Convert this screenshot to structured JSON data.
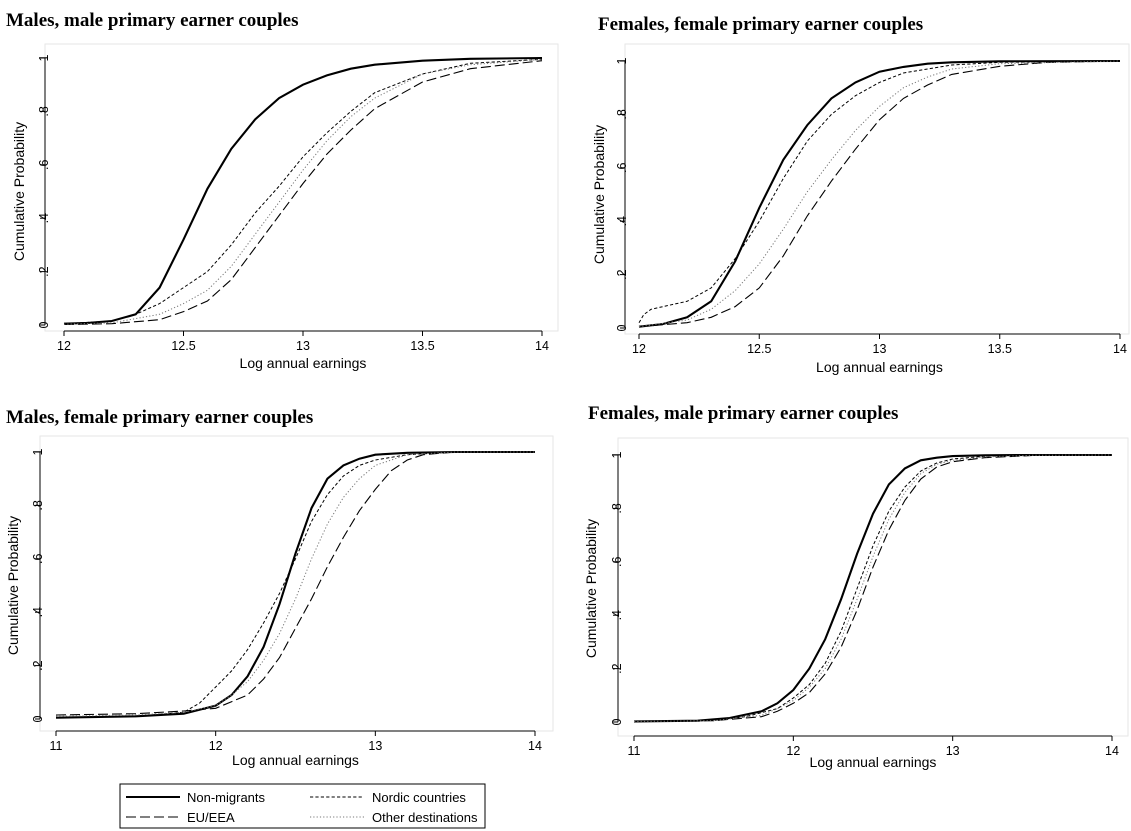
{
  "legend": {
    "placement": "bottom-center",
    "entries": [
      "Non-migrants",
      "Nordic countries",
      "EU/EEA",
      "Other destinations"
    ]
  },
  "chart_data": [
    {
      "type": "line",
      "title": "Males, male primary earner couples",
      "xlabel": "Log annual earnings",
      "ylabel": "Cumulative Probability",
      "xlim": [
        12,
        14
      ],
      "ylim": [
        0,
        1
      ],
      "xticks": [
        "12",
        "12.5",
        "13",
        "13.5",
        "14"
      ],
      "yticks": [
        "0",
        ".2",
        ".4",
        ".6",
        ".8",
        "1"
      ],
      "series": [
        {
          "name": "Non-migrants",
          "style": "solid",
          "x": [
            12,
            12.1,
            12.2,
            12.3,
            12.4,
            12.5,
            12.6,
            12.7,
            12.8,
            12.9,
            13,
            13.1,
            13.2,
            13.3,
            13.5,
            13.7,
            14
          ],
          "y": [
            0.005,
            0.008,
            0.015,
            0.04,
            0.14,
            0.32,
            0.51,
            0.66,
            0.77,
            0.85,
            0.9,
            0.935,
            0.96,
            0.975,
            0.99,
            0.997,
            1.0
          ]
        },
        {
          "name": "Nordic countries",
          "style": "short-dash",
          "x": [
            12,
            12.2,
            12.3,
            12.4,
            12.5,
            12.6,
            12.7,
            12.8,
            12.9,
            13,
            13.1,
            13.2,
            13.3,
            13.5,
            13.7,
            14
          ],
          "y": [
            0.005,
            0.015,
            0.04,
            0.08,
            0.14,
            0.2,
            0.3,
            0.42,
            0.52,
            0.63,
            0.72,
            0.8,
            0.87,
            0.94,
            0.98,
            0.995
          ]
        },
        {
          "name": "EU/EEA",
          "style": "long-dash",
          "x": [
            12,
            12.2,
            12.4,
            12.5,
            12.6,
            12.7,
            12.8,
            12.9,
            13,
            13.1,
            13.2,
            13.3,
            13.5,
            13.7,
            14
          ],
          "y": [
            0.002,
            0.005,
            0.02,
            0.05,
            0.09,
            0.17,
            0.29,
            0.41,
            0.53,
            0.64,
            0.73,
            0.81,
            0.91,
            0.96,
            0.99
          ]
        },
        {
          "name": "Other destinations",
          "style": "dotted",
          "x": [
            12,
            12.2,
            12.4,
            12.5,
            12.6,
            12.7,
            12.8,
            12.9,
            13,
            13.1,
            13.2,
            13.3,
            13.5,
            13.7,
            14
          ],
          "y": [
            0.003,
            0.008,
            0.04,
            0.08,
            0.13,
            0.22,
            0.34,
            0.46,
            0.58,
            0.69,
            0.78,
            0.85,
            0.94,
            0.975,
            0.995
          ]
        }
      ]
    },
    {
      "type": "line",
      "title": "Females, female primary earner couples",
      "xlabel": "Log annual earnings",
      "ylabel": "Cumulative Probability",
      "xlim": [
        12,
        14
      ],
      "ylim": [
        0,
        1
      ],
      "xticks": [
        "12",
        "12.5",
        "13",
        "13.5",
        "14"
      ],
      "yticks": [
        "0",
        ".2",
        ".4",
        ".6",
        ".8",
        "1"
      ],
      "series": [
        {
          "name": "Non-migrants",
          "style": "solid",
          "x": [
            12,
            12.1,
            12.2,
            12.3,
            12.4,
            12.5,
            12.6,
            12.7,
            12.8,
            12.9,
            13,
            13.1,
            13.2,
            13.3,
            13.5,
            14
          ],
          "y": [
            0.005,
            0.015,
            0.04,
            0.1,
            0.25,
            0.45,
            0.63,
            0.76,
            0.86,
            0.92,
            0.96,
            0.978,
            0.99,
            0.995,
            0.999,
            1.0
          ]
        },
        {
          "name": "Nordic countries",
          "style": "short-dash",
          "x": [
            12,
            12.02,
            12.05,
            12.1,
            12.2,
            12.3,
            12.4,
            12.5,
            12.6,
            12.7,
            12.8,
            12.9,
            13,
            13.1,
            13.2,
            13.3,
            13.5,
            14
          ],
          "y": [
            0.02,
            0.05,
            0.07,
            0.08,
            0.1,
            0.15,
            0.26,
            0.4,
            0.56,
            0.7,
            0.8,
            0.87,
            0.92,
            0.955,
            0.97,
            0.985,
            0.995,
            1.0
          ]
        },
        {
          "name": "EU/EEA",
          "style": "long-dash",
          "x": [
            12,
            12.2,
            12.3,
            12.4,
            12.5,
            12.6,
            12.7,
            12.8,
            12.9,
            13,
            13.1,
            13.2,
            13.3,
            13.5,
            13.7,
            14
          ],
          "y": [
            0.005,
            0.02,
            0.04,
            0.08,
            0.15,
            0.27,
            0.42,
            0.55,
            0.67,
            0.78,
            0.86,
            0.91,
            0.95,
            0.98,
            0.995,
            1.0
          ]
        },
        {
          "name": "Other destinations",
          "style": "dotted",
          "x": [
            12,
            12.2,
            12.3,
            12.4,
            12.5,
            12.6,
            12.7,
            12.8,
            12.9,
            13,
            13.1,
            13.2,
            13.3,
            13.5,
            14
          ],
          "y": [
            0.005,
            0.03,
            0.07,
            0.14,
            0.24,
            0.37,
            0.51,
            0.63,
            0.74,
            0.83,
            0.9,
            0.94,
            0.97,
            0.99,
            1.0
          ]
        }
      ]
    },
    {
      "type": "line",
      "title": "Males, female primary earner couples",
      "xlabel": "Log annual earnings",
      "ylabel": "Cumulative Probability",
      "xlim": [
        11,
        14
      ],
      "ylim": [
        0,
        1
      ],
      "xticks": [
        "11",
        "12",
        "13",
        "14"
      ],
      "yticks": [
        "0",
        ".2",
        ".4",
        ".6",
        ".8",
        "1"
      ],
      "series": [
        {
          "name": "Non-migrants",
          "style": "solid",
          "x": [
            11,
            11.5,
            11.8,
            12,
            12.1,
            12.2,
            12.3,
            12.4,
            12.5,
            12.6,
            12.7,
            12.8,
            12.9,
            13,
            13.2,
            13.5,
            14
          ],
          "y": [
            0.005,
            0.01,
            0.02,
            0.05,
            0.09,
            0.16,
            0.27,
            0.43,
            0.62,
            0.79,
            0.9,
            0.95,
            0.975,
            0.99,
            0.997,
            1.0,
            1.0
          ]
        },
        {
          "name": "Nordic countries",
          "style": "short-dash",
          "x": [
            11,
            11.5,
            11.8,
            11.9,
            12,
            12.1,
            12.2,
            12.3,
            12.4,
            12.5,
            12.6,
            12.7,
            12.8,
            12.9,
            13,
            13.2,
            13.5,
            14
          ],
          "y": [
            0.005,
            0.01,
            0.025,
            0.06,
            0.12,
            0.18,
            0.26,
            0.36,
            0.47,
            0.6,
            0.74,
            0.84,
            0.91,
            0.95,
            0.97,
            0.99,
            1.0,
            1.0
          ]
        },
        {
          "name": "EU/EEA",
          "style": "long-dash",
          "x": [
            11,
            11.5,
            11.8,
            12,
            12.2,
            12.3,
            12.4,
            12.5,
            12.6,
            12.7,
            12.8,
            12.9,
            13,
            13.1,
            13.2,
            13.3,
            13.5,
            14
          ],
          "y": [
            0.015,
            0.02,
            0.03,
            0.04,
            0.09,
            0.15,
            0.23,
            0.34,
            0.45,
            0.57,
            0.68,
            0.78,
            0.86,
            0.93,
            0.97,
            0.99,
            1.0,
            1.0
          ]
        },
        {
          "name": "Other destinations",
          "style": "dotted",
          "x": [
            11,
            11.5,
            11.8,
            12,
            12.1,
            12.2,
            12.3,
            12.4,
            12.5,
            12.6,
            12.7,
            12.8,
            12.9,
            13,
            13.1,
            13.2,
            13.5,
            14
          ],
          "y": [
            0.01,
            0.015,
            0.025,
            0.05,
            0.09,
            0.14,
            0.22,
            0.32,
            0.45,
            0.6,
            0.73,
            0.83,
            0.9,
            0.95,
            0.97,
            0.99,
            1.0,
            1.0
          ]
        }
      ]
    },
    {
      "type": "line",
      "title": "Females, male primary earner couples",
      "xlabel": "Log annual earnings",
      "ylabel": "Cumulative Probability",
      "xlim": [
        11,
        14
      ],
      "ylim": [
        0,
        1
      ],
      "xticks": [
        "11",
        "12",
        "13",
        "14"
      ],
      "yticks": [
        "0",
        ".2",
        ".4",
        ".6",
        ".8",
        "1"
      ],
      "series": [
        {
          "name": "Non-migrants",
          "style": "solid",
          "x": [
            11,
            11.4,
            11.6,
            11.8,
            11.9,
            12,
            12.1,
            12.2,
            12.3,
            12.4,
            12.5,
            12.6,
            12.7,
            12.8,
            12.9,
            13,
            13.2,
            13.5,
            14
          ],
          "y": [
            0.002,
            0.005,
            0.015,
            0.04,
            0.07,
            0.12,
            0.2,
            0.31,
            0.46,
            0.63,
            0.78,
            0.89,
            0.95,
            0.98,
            0.99,
            0.996,
            0.999,
            1.0,
            1.0
          ]
        },
        {
          "name": "Nordic countries",
          "style": "short-dash",
          "x": [
            11,
            11.5,
            11.7,
            11.9,
            12,
            12.1,
            12.2,
            12.3,
            12.4,
            12.5,
            12.6,
            12.7,
            12.8,
            12.9,
            13,
            13.2,
            13.5,
            14
          ],
          "y": [
            0.002,
            0.006,
            0.02,
            0.05,
            0.09,
            0.14,
            0.22,
            0.34,
            0.5,
            0.66,
            0.79,
            0.88,
            0.94,
            0.97,
            0.985,
            0.995,
            1.0,
            1.0
          ]
        },
        {
          "name": "EU/EEA",
          "style": "long-dash",
          "x": [
            11,
            11.5,
            11.8,
            11.9,
            12,
            12.1,
            12.2,
            12.3,
            12.4,
            12.5,
            12.6,
            12.7,
            12.8,
            12.9,
            13,
            13.2,
            13.5,
            14
          ],
          "y": [
            0.002,
            0.005,
            0.02,
            0.04,
            0.07,
            0.11,
            0.18,
            0.28,
            0.42,
            0.58,
            0.72,
            0.83,
            0.91,
            0.955,
            0.975,
            0.99,
            0.998,
            1.0
          ]
        },
        {
          "name": "Other destinations",
          "style": "dotted",
          "x": [
            11,
            11.5,
            11.8,
            11.9,
            12,
            12.1,
            12.2,
            12.3,
            12.4,
            12.5,
            12.6,
            12.7,
            12.8,
            12.9,
            13,
            13.2,
            13.5,
            14
          ],
          "y": [
            0.002,
            0.005,
            0.025,
            0.05,
            0.08,
            0.13,
            0.2,
            0.31,
            0.46,
            0.62,
            0.76,
            0.86,
            0.93,
            0.965,
            0.98,
            0.993,
            0.999,
            1.0
          ]
        }
      ]
    }
  ]
}
